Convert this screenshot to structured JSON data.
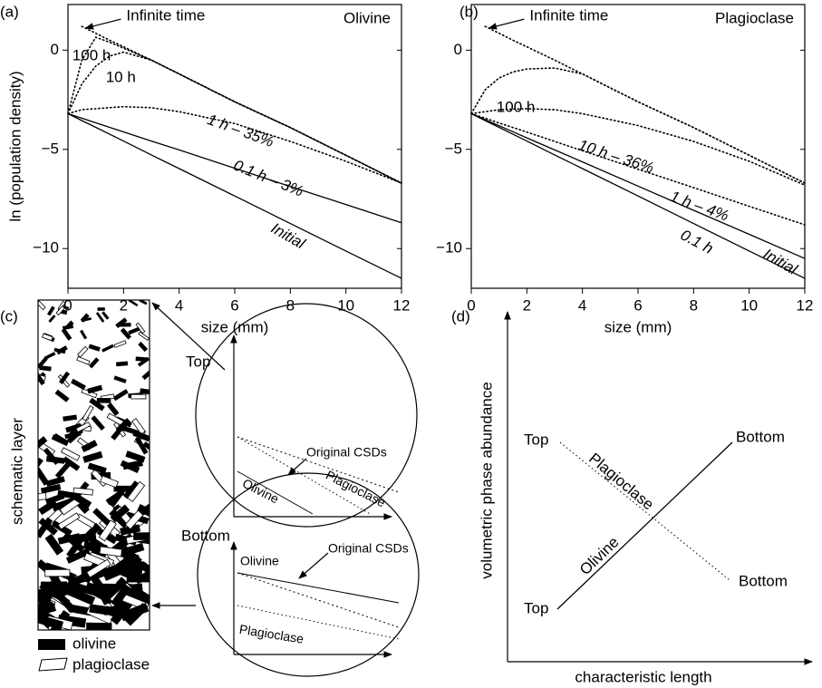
{
  "chart_data": [
    {
      "type": "line",
      "panel_label": "(a)",
      "title": "Olivine",
      "ylabel": "ln (population density)",
      "xlabel": "size (mm)",
      "annotation": "Infinite time",
      "x": [
        0,
        0.5,
        1,
        1.5,
        2,
        3,
        4,
        6,
        8,
        10,
        12
      ],
      "xlim": [
        0,
        12
      ],
      "xticks": [
        0,
        2,
        4,
        6,
        8,
        10,
        12
      ],
      "ylim": [
        -12,
        2.3
      ],
      "yticks": [
        {
          "value": -10,
          "label": "−10"
        },
        {
          "value": -5,
          "label": "−5"
        },
        0
      ],
      "series": [
        {
          "name": "Infinite time",
          "color": "#000000",
          "style": "dotted",
          "values": [
            null,
            1.2,
            0.85,
            0.5,
            0.17,
            -0.5,
            -1.2,
            -2.6,
            -3.9,
            -5.3,
            -6.7
          ]
        },
        {
          "name": "100 h",
          "color": "#000000",
          "style": "dotted",
          "values": [
            -3.2,
            -0.5,
            0.65,
            0.4,
            0.1,
            -0.5,
            -1.2,
            -2.6,
            -3.9,
            -5.3,
            -6.7
          ]
        },
        {
          "name": "10 h",
          "color": "#000000",
          "style": "dotted",
          "values": [
            -3.2,
            -1.7,
            -0.8,
            -0.3,
            -0.1,
            -0.5,
            -1.2,
            -2.6,
            -3.9,
            -5.3,
            -6.7
          ]
        },
        {
          "name": "1 h – 35%",
          "color": "#000000",
          "style": "dotted",
          "values": [
            -3.2,
            -3.0,
            -2.95,
            -2.9,
            -2.85,
            -2.9,
            -3.1,
            -3.7,
            -4.6,
            -5.6,
            -6.7
          ]
        },
        {
          "name": "0.1 h – 3%",
          "color": "#000000",
          "style": "solid",
          "values": [
            -3.2,
            -3.43,
            -3.66,
            -3.89,
            -4.12,
            -4.58,
            -5.03,
            -5.95,
            -6.87,
            -7.78,
            -8.7
          ]
        },
        {
          "name": "Initial",
          "color": "#000000",
          "style": "solid",
          "values": [
            -3.2,
            -3.55,
            -3.89,
            -4.24,
            -4.58,
            -5.28,
            -5.97,
            -7.35,
            -8.74,
            -10.12,
            -11.5
          ]
        }
      ]
    },
    {
      "type": "line",
      "panel_label": "(b)",
      "title": "Plagioclase",
      "xlabel": "size (mm)",
      "annotation": "Infinite time",
      "x": [
        0,
        0.5,
        1,
        1.5,
        2,
        3,
        4,
        6,
        8,
        10,
        12
      ],
      "xlim": [
        0,
        12
      ],
      "xticks": [
        0,
        2,
        4,
        6,
        8,
        10,
        12
      ],
      "ylim": [
        -12,
        2.3
      ],
      "yticks": [
        {
          "value": -10,
          "label": "−10"
        },
        {
          "value": -5,
          "label": "−5"
        },
        0
      ],
      "series": [
        {
          "name": "Infinite time",
          "color": "#000000",
          "style": "dotted",
          "values": [
            null,
            1.2,
            0.85,
            0.5,
            0.17,
            -0.5,
            -1.2,
            -2.6,
            -3.9,
            -5.3,
            -6.7
          ]
        },
        {
          "name": "100 h",
          "color": "#000000",
          "style": "dotted",
          "values": [
            -3.2,
            -2.0,
            -1.4,
            -1.1,
            -0.95,
            -0.9,
            -1.2,
            -2.6,
            -3.9,
            -5.3,
            -6.7
          ]
        },
        {
          "name": "10 h – 36%",
          "color": "#000000",
          "style": "dotted",
          "values": [
            -3.2,
            -3.1,
            -3.0,
            -2.97,
            -2.95,
            -3.0,
            -3.2,
            -3.8,
            -4.6,
            -5.6,
            -6.8
          ]
        },
        {
          "name": "1 h – 4%",
          "color": "#000000",
          "style": "dotted",
          "values": [
            -3.2,
            -3.43,
            -3.67,
            -3.9,
            -4.13,
            -4.6,
            -5.07,
            -6.0,
            -6.93,
            -7.87,
            -8.8
          ]
        },
        {
          "name": "0.1 h",
          "color": "#000000",
          "style": "solid",
          "values": [
            -3.2,
            -3.5,
            -3.81,
            -4.11,
            -4.42,
            -5.03,
            -5.63,
            -6.85,
            -8.07,
            -9.28,
            -10.5
          ]
        },
        {
          "name": "Initial",
          "color": "#000000",
          "style": "solid",
          "values": [
            -3.2,
            -3.55,
            -3.89,
            -4.24,
            -4.58,
            -5.28,
            -5.97,
            -7.35,
            -8.74,
            -10.12,
            -11.5
          ]
        }
      ]
    }
  ],
  "schematic": {
    "label": "(c)",
    "layer_label": "schematic layer",
    "legend": [
      "olivine",
      "plagioclase"
    ],
    "top": {
      "title": "Top",
      "note": "Original CSDs",
      "lines": [
        "Plagioclase",
        "Olivine"
      ]
    },
    "bottom": {
      "title": "Bottom",
      "note": "Original CSDs",
      "lines": [
        "Olivine",
        "Plagioclase"
      ]
    }
  },
  "abundance": {
    "label": "(d)",
    "ylabel": "volumetric phase abundance",
    "xlabel": "characteristic length",
    "lines": [
      "Plagioclase",
      "Olivine"
    ],
    "plagioclase_ends": [
      "Top",
      "Bottom"
    ],
    "olivine_ends": [
      "Top",
      "Bottom"
    ]
  }
}
